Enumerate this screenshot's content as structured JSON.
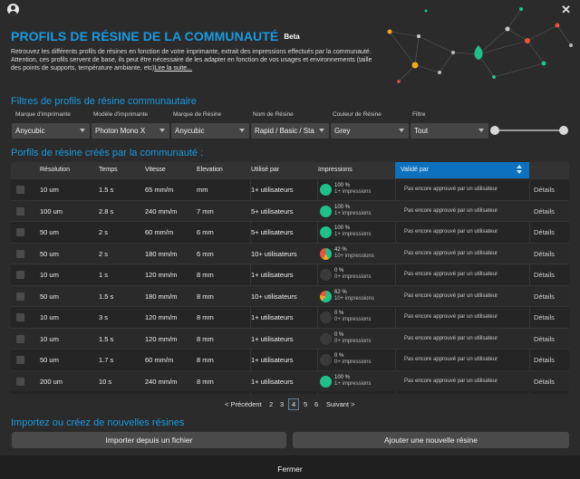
{
  "header": {
    "title": "PROFILS DE RÉSINE DE LA COMMUNAUTÉ",
    "badge": "Beta",
    "description_line1": "Retrouvez les différents profils de résines en fonction de votre imprimante, extrait des impressions effectués par la communauté.",
    "description_line2": "Attention, ces profils servent de base, ils peut être nécessaire de les adapter en fonction de vos usages et environnements (taille",
    "description_line3": "des points de supports, température ambiante, etc)",
    "read_more": "Lire la suite..."
  },
  "filters": {
    "section_title": "Filtres de profils de résine communautaire",
    "printer_brand": {
      "label": "Marque d'imprimante",
      "value": "Anycubic"
    },
    "printer_model": {
      "label": "Modèle d'imprimante",
      "value": "Photon Mono X"
    },
    "resin_brand": {
      "label": "Marque de Résine",
      "value": "Anycubic"
    },
    "resin_name": {
      "label": "Nom de Résine",
      "value": "Rapid / Basic / Sta"
    },
    "resin_color": {
      "label": "Couleur de Résine",
      "value": "Grey"
    },
    "filter": {
      "label": "Filtre",
      "value": "Tout"
    }
  },
  "table": {
    "section_title": "Porfils de résine créés par la communauté :",
    "columns": [
      "Résolution",
      "Temps",
      "Vitesse",
      "Elevation",
      "Utilisé par",
      "Impressions",
      "Validé par"
    ],
    "details_label": "Détails",
    "rows": [
      {
        "resolution": "10 um",
        "time": "1.5 s",
        "speed": "65 mm/m",
        "elevation": "mm",
        "used_by": "1+ utilisateurs",
        "pct": "100 %",
        "imp": "1+ impressions",
        "success": 100,
        "validated": "Pas encore approuvé par un utilisateur"
      },
      {
        "resolution": "100 um",
        "time": "2.8 s",
        "speed": "240 mm/m",
        "elevation": "7 mm",
        "used_by": "5+ utilisateurs",
        "pct": "100 %",
        "imp": "1+ impressions",
        "success": 100,
        "validated": "Pas encore approuvé par un utilisateur"
      },
      {
        "resolution": "50 um",
        "time": "2 s",
        "speed": "60 mm/m",
        "elevation": "6 mm",
        "used_by": "5+ utilisateurs",
        "pct": "100 %",
        "imp": "1+ impressions",
        "success": 100,
        "validated": "Pas encore approuvé par un utilisateur"
      },
      {
        "resolution": "50 um",
        "time": "2 s",
        "speed": "180 mm/m",
        "elevation": "6 mm",
        "used_by": "10+ utilisateurs",
        "pct": "42 %",
        "imp": "10+ impressions",
        "success": 42,
        "validated": "Pas encore approuvé par un utilisateur"
      },
      {
        "resolution": "10 um",
        "time": "1 s",
        "speed": "120 mm/m",
        "elevation": "8 mm",
        "used_by": "1+ utilisateurs",
        "pct": "0 %",
        "imp": "0+ impressions",
        "success": 0,
        "validated": "Pas encore approuvé par un utilisateur"
      },
      {
        "resolution": "50 um",
        "time": "1.5 s",
        "speed": "180 mm/m",
        "elevation": "8 mm",
        "used_by": "10+ utilisateurs",
        "pct": "62 %",
        "imp": "10+ impressions",
        "success": 62,
        "validated": "Pas encore approuvé par un utilisateur"
      },
      {
        "resolution": "10 um",
        "time": "3 s",
        "speed": "120 mm/m",
        "elevation": "8 mm",
        "used_by": "1+ utilisateurs",
        "pct": "0 %",
        "imp": "0+ impressions",
        "success": 0,
        "validated": "Pas encore approuvé par un utilisateur"
      },
      {
        "resolution": "10 um",
        "time": "1.5 s",
        "speed": "120 mm/m",
        "elevation": "8 mm",
        "used_by": "1+ utilisateurs",
        "pct": "0 %",
        "imp": "0+ impressions",
        "success": 0,
        "validated": "Pas encore approuvé par un utilisateur"
      },
      {
        "resolution": "50 um",
        "time": "1.7 s",
        "speed": "60 mm/m",
        "elevation": "8 mm",
        "used_by": "1+ utilisateurs",
        "pct": "0 %",
        "imp": "0+ impressions",
        "success": 0,
        "validated": "Pas encore approuvé par un utilisateur"
      },
      {
        "resolution": "200 um",
        "time": "10 s",
        "speed": "240 mm/m",
        "elevation": "8 mm",
        "used_by": "1+ utilisateurs",
        "pct": "100 %",
        "imp": "1+ impressions",
        "success": 100,
        "validated": "Pas encore approuvé par un utilisateur"
      }
    ]
  },
  "pagination": {
    "previous": "< Précédent",
    "pages": [
      "2",
      "3",
      "4",
      "5",
      "6"
    ],
    "current": "4",
    "next": "Suivant >"
  },
  "import": {
    "section_title": "Importez ou créez de nouvelles résines",
    "import_button": "Importer depuis un fichier",
    "add_button": "Ajouter une nouvelle résine"
  },
  "footer": {
    "close_button": "Fermer"
  },
  "colors": {
    "accent": "#1a9ae0",
    "success": "#1fc08a",
    "failure": "#e8533a",
    "warning": "#f0a81c",
    "none": "#3a3a3a",
    "header_sorted": "#0c72c0"
  }
}
